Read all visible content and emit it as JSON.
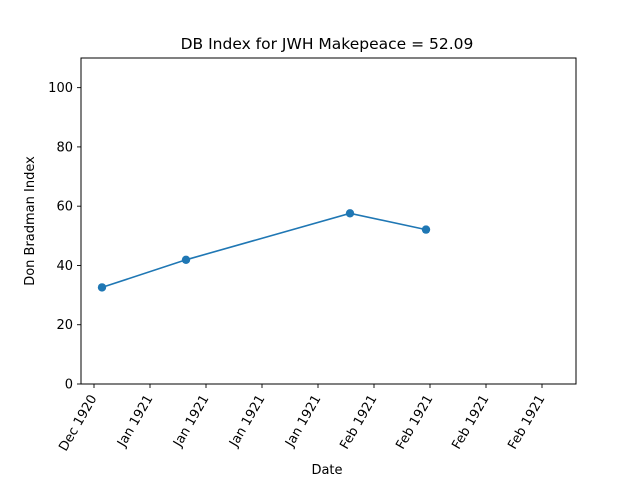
{
  "chart_data": {
    "type": "line",
    "title": "DB Index for JWH Makepeace = 52.09",
    "xlabel": "Date",
    "ylabel": "Don Bradman Index",
    "x_tick_labels": [
      "Dec 1920",
      "Jan 1921",
      "Jan 1921",
      "Jan 1921",
      "Jan 1921",
      "Feb 1921",
      "Feb 1921",
      "Feb 1921",
      "Feb 1921"
    ],
    "y_ticks": [
      0,
      20,
      40,
      60,
      80,
      100
    ],
    "ylim": [
      0,
      110
    ],
    "grid": false,
    "series": [
      {
        "x": [
          "1920-12-19",
          "1921-01-09",
          "1921-02-19",
          "1921-03-10"
        ],
        "values": [
          32.6,
          41.9,
          57.6,
          52.09
        ],
        "color": "#1f77b4",
        "marker": "circle"
      }
    ]
  }
}
